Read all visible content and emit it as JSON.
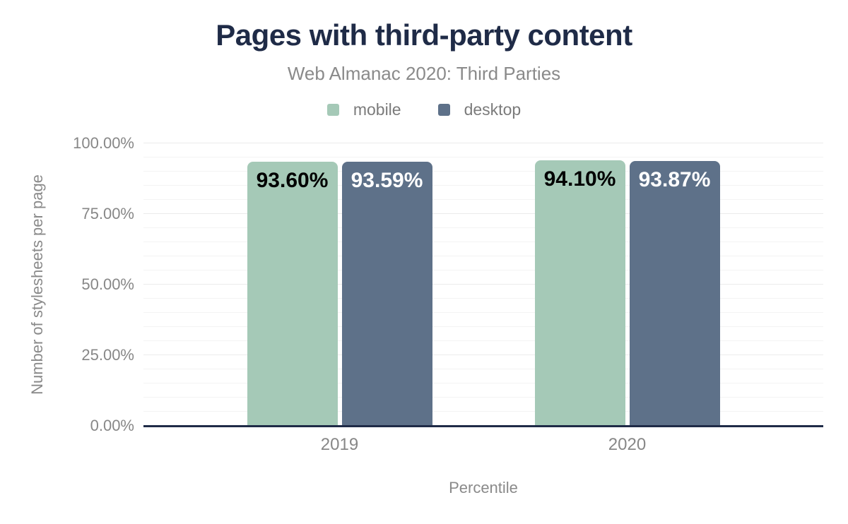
{
  "chart_data": {
    "type": "bar",
    "title": "Pages with third-party content",
    "subtitle": "Web Almanac 2020: Third Parties",
    "categories": [
      "2019",
      "2020"
    ],
    "series": [
      {
        "name": "mobile",
        "color": "#a5c9b7",
        "label_text_color": "#000000",
        "values": [
          93.6,
          94.1
        ]
      },
      {
        "name": "desktop",
        "color": "#5e7189",
        "label_text_color": "#ffffff",
        "values": [
          93.59,
          93.87
        ]
      }
    ],
    "value_labels": [
      [
        "93.60%",
        "94.10%"
      ],
      [
        "93.59%",
        "93.87%"
      ]
    ],
    "xlabel": "Percentile",
    "ylabel": "Number of stylesheets per page",
    "ylim": [
      0,
      100
    ],
    "y_major_ticks": [
      0,
      25,
      50,
      75,
      100
    ],
    "y_tick_labels": [
      "0.00%",
      "25.00%",
      "50.00%",
      "75.00%",
      "100.00%"
    ],
    "y_minor_step": 5,
    "grid": "horizontal-minor",
    "legend_position": "top-center",
    "colors": {
      "title": "#1f2b47",
      "axis_line": "#1f2b47",
      "muted_text": "#8a8a8a",
      "gridline_minor": "#f3f3f3",
      "gridline_major": "#ebebeb"
    }
  }
}
